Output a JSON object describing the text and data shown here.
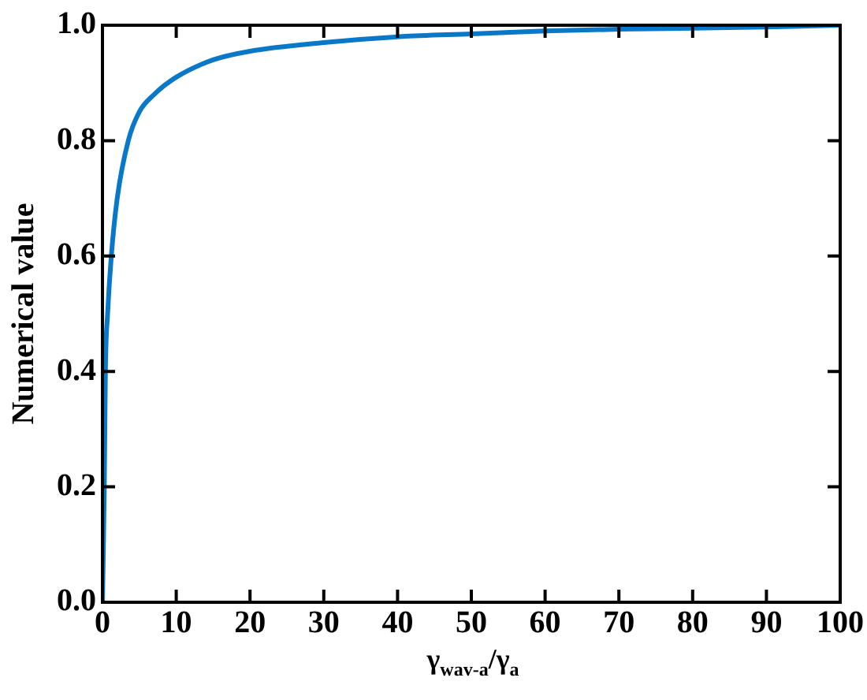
{
  "chart_data": {
    "type": "line",
    "xlabel": "γ$_{wav-a}$/γ$_{a}$",
    "ylabel": "Numerical value",
    "x": [
      0,
      0.25,
      0.4,
      0.7,
      1.2,
      2,
      3.5,
      5,
      7,
      10,
      15,
      20,
      30,
      40,
      50,
      60,
      70,
      80,
      90,
      100
    ],
    "series": [
      {
        "color": "#0a78c8",
        "values": [
          0,
          0.2,
          0.4,
          0.5,
          0.6,
          0.7,
          0.8,
          0.85,
          0.88,
          0.91,
          0.94,
          0.955,
          0.97,
          0.98,
          0.985,
          0.99,
          0.993,
          0.995,
          0.997,
          1.0
        ]
      }
    ],
    "xlim": [
      0,
      100
    ],
    "xticks": [
      0,
      10,
      20,
      30,
      40,
      50,
      60,
      70,
      80,
      90,
      100
    ],
    "ylim": [
      0,
      1
    ],
    "yticks": [
      {
        "value": 0,
        "label": "0.0"
      },
      {
        "value": 0.2,
        "label": "0.2"
      },
      {
        "value": 0.4,
        "label": "0.4"
      },
      {
        "value": 0.6,
        "label": "0.6"
      },
      {
        "value": 0.8,
        "label": "0.8"
      },
      {
        "value": 1,
        "label": "1.0"
      }
    ],
    "grid": false,
    "legend": false,
    "marker": "none",
    "line_style": "solid"
  }
}
